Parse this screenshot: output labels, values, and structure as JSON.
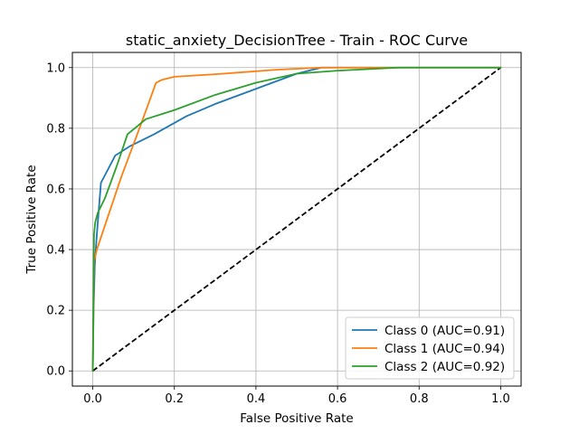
{
  "chart_data": {
    "type": "line",
    "title": "static_anxiety_DecisionTree - Train - ROC Curve",
    "xlabel": "False Positive Rate",
    "ylabel": "True Positive Rate",
    "xlim": [
      -0.05,
      1.05
    ],
    "ylim": [
      -0.05,
      1.05
    ],
    "xticks": [
      0.0,
      0.2,
      0.4,
      0.6,
      0.8,
      1.0
    ],
    "yticks": [
      0.0,
      0.2,
      0.4,
      0.6,
      0.8,
      1.0
    ],
    "xtick_labels": [
      "0.0",
      "0.2",
      "0.4",
      "0.6",
      "0.8",
      "1.0"
    ],
    "ytick_labels": [
      "0.0",
      "0.2",
      "0.4",
      "0.6",
      "0.8",
      "1.0"
    ],
    "grid": true,
    "legend_position": "lower-right",
    "series": [
      {
        "name": "Class 0 (AUC=0.91)",
        "color": "#1f77b4",
        "x": [
          0.0,
          0.002,
          0.005,
          0.01,
          0.02,
          0.055,
          0.09,
          0.15,
          0.23,
          0.3,
          0.4,
          0.5,
          0.56,
          0.75,
          1.0
        ],
        "y": [
          0.0,
          0.2,
          0.35,
          0.45,
          0.62,
          0.71,
          0.74,
          0.78,
          0.84,
          0.88,
          0.93,
          0.98,
          1.0,
          1.0,
          1.0
        ]
      },
      {
        "name": "Class 1 (AUC=0.94)",
        "color": "#ff7f0e",
        "x": [
          0.0,
          0.003,
          0.01,
          0.03,
          0.07,
          0.12,
          0.155,
          0.17,
          0.2,
          0.3,
          0.45,
          0.56,
          1.0
        ],
        "y": [
          0.0,
          0.36,
          0.4,
          0.48,
          0.64,
          0.82,
          0.95,
          0.96,
          0.97,
          0.978,
          0.993,
          1.0,
          1.0
        ]
      },
      {
        "name": "Class 2 (AUC=0.92)",
        "color": "#2ca02c",
        "x": [
          0.0,
          0.001,
          0.003,
          0.006,
          0.012,
          0.03,
          0.06,
          0.085,
          0.13,
          0.2,
          0.3,
          0.4,
          0.5,
          0.6,
          0.75,
          1.0
        ],
        "y": [
          0.0,
          0.15,
          0.45,
          0.49,
          0.52,
          0.57,
          0.68,
          0.78,
          0.83,
          0.86,
          0.91,
          0.95,
          0.98,
          0.99,
          1.0,
          1.0
        ]
      }
    ],
    "reference_line": {
      "x": [
        0.0,
        1.0
      ],
      "y": [
        0.0,
        1.0
      ],
      "color": "#000000",
      "style": "dashed"
    }
  }
}
